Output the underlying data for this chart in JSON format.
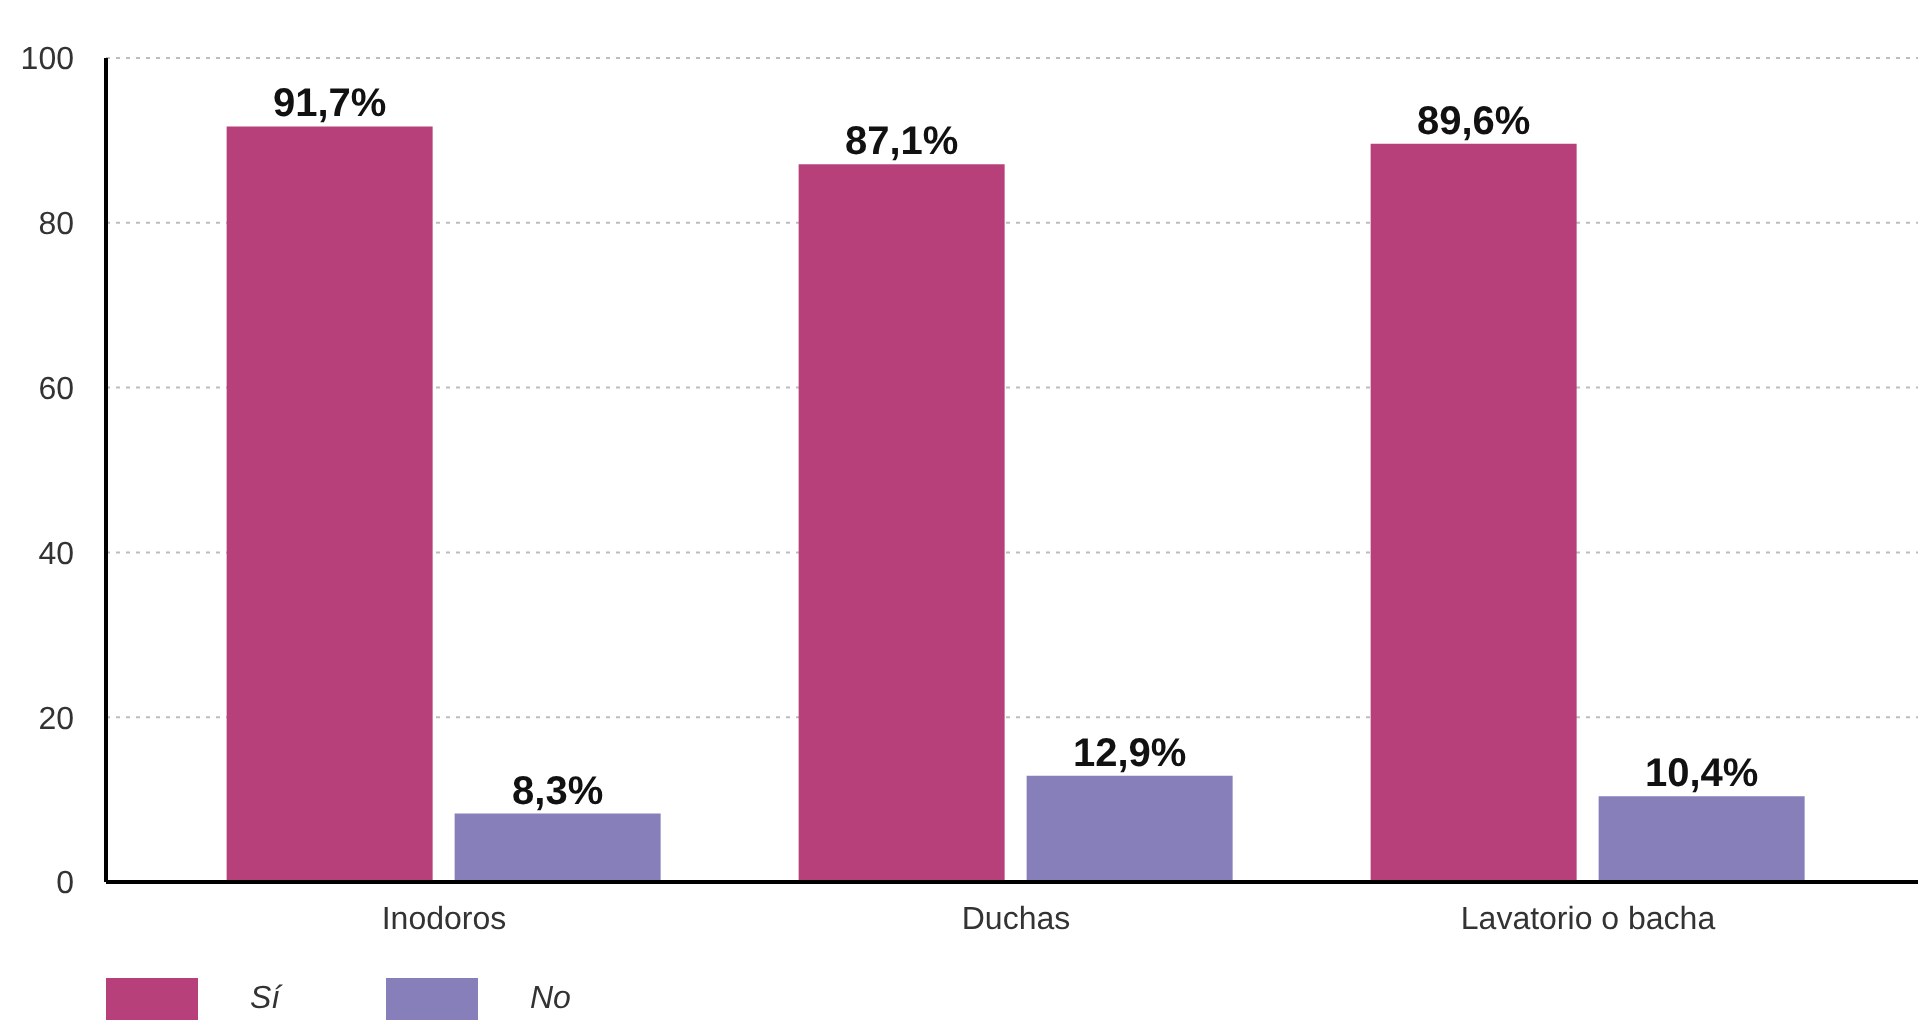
{
  "chart_data": {
    "type": "bar",
    "categories": [
      "Inodoros",
      "Duchas",
      "Lavatorio o bacha"
    ],
    "series": [
      {
        "name": "Sí",
        "color": "#b8407a",
        "values": [
          91.7,
          87.1,
          89.6
        ],
        "value_labels": [
          "91,7%",
          "87,1%",
          "89,6%"
        ]
      },
      {
        "name": "No",
        "color": "#877fba",
        "values": [
          8.3,
          12.9,
          10.4
        ],
        "value_labels": [
          "8,3%",
          "12,9%",
          "10,4%"
        ]
      }
    ],
    "ylim": [
      0,
      100
    ],
    "yticks": [
      0,
      20,
      40,
      60,
      80,
      100
    ],
    "grid": "y",
    "legend": "bottom left"
  }
}
